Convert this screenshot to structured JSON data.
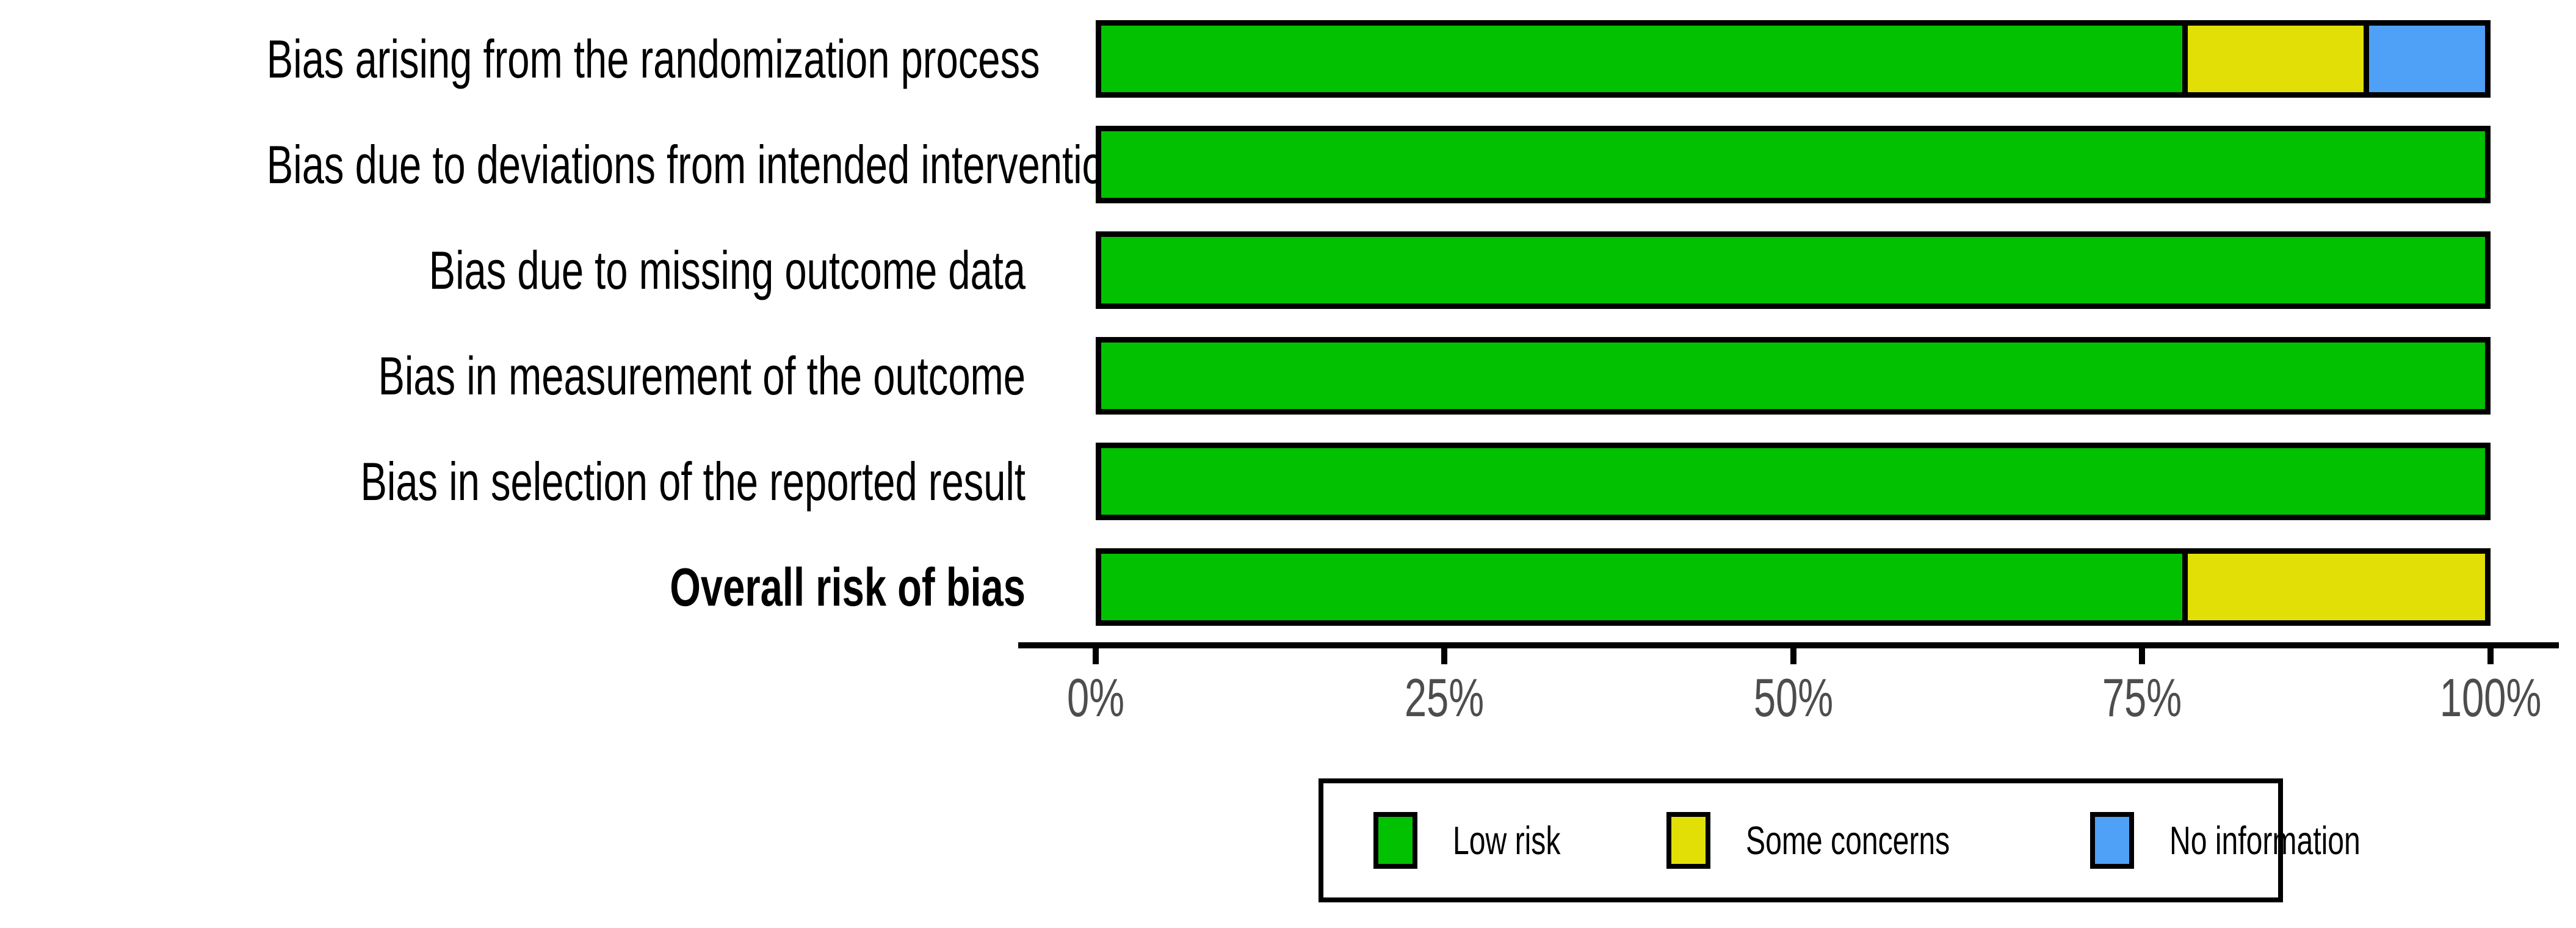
{
  "styles": {
    "background": "#ffffff",
    "bar_border": "#000000",
    "axis_line_color": "#000000",
    "tick_text_color": "#4d4d4d",
    "label_text_color": "#000000"
  },
  "chart_data": {
    "type": "bar",
    "variant": "horizontal-stacked-percentage",
    "title": "",
    "xlabel": "",
    "ylabel": "",
    "grid": false,
    "categories": [
      {
        "label": "Bias arising from the randomization process",
        "bold": false
      },
      {
        "label": "Bias due to deviations from intended interventions",
        "bold": false
      },
      {
        "label": "Bias due to missing outcome data",
        "bold": false
      },
      {
        "label": "Bias in measurement of the outcome",
        "bold": false
      },
      {
        "label": "Bias in selection of the reported result",
        "bold": false
      },
      {
        "label": "Overall risk of bias",
        "bold": true
      }
    ],
    "series": [
      {
        "name": "Low risk",
        "color": "#02C100",
        "values": [
          78.3,
          100,
          100,
          100,
          100,
          78.3
        ]
      },
      {
        "name": "Some concerns",
        "color": "#E2DF07",
        "values": [
          13.0,
          0,
          0,
          0,
          0,
          21.7
        ]
      },
      {
        "name": "No information",
        "color": "#4EA1F7",
        "values": [
          8.7,
          0,
          0,
          0,
          0,
          0
        ]
      }
    ],
    "x_axis": {
      "min": 0,
      "max": 100,
      "ticks": [
        {
          "label": "0%",
          "value": 0
        },
        {
          "label": "25%",
          "value": 25
        },
        {
          "label": "50%",
          "value": 50
        },
        {
          "label": "75%",
          "value": 75
        },
        {
          "label": "100%",
          "value": 100
        }
      ]
    },
    "legend": {
      "position": "bottom",
      "items": [
        {
          "label": "Low risk",
          "color": "#02C100"
        },
        {
          "label": "Some concerns",
          "color": "#E2DF07"
        },
        {
          "label": "No information",
          "color": "#4EA1F7"
        }
      ]
    }
  }
}
